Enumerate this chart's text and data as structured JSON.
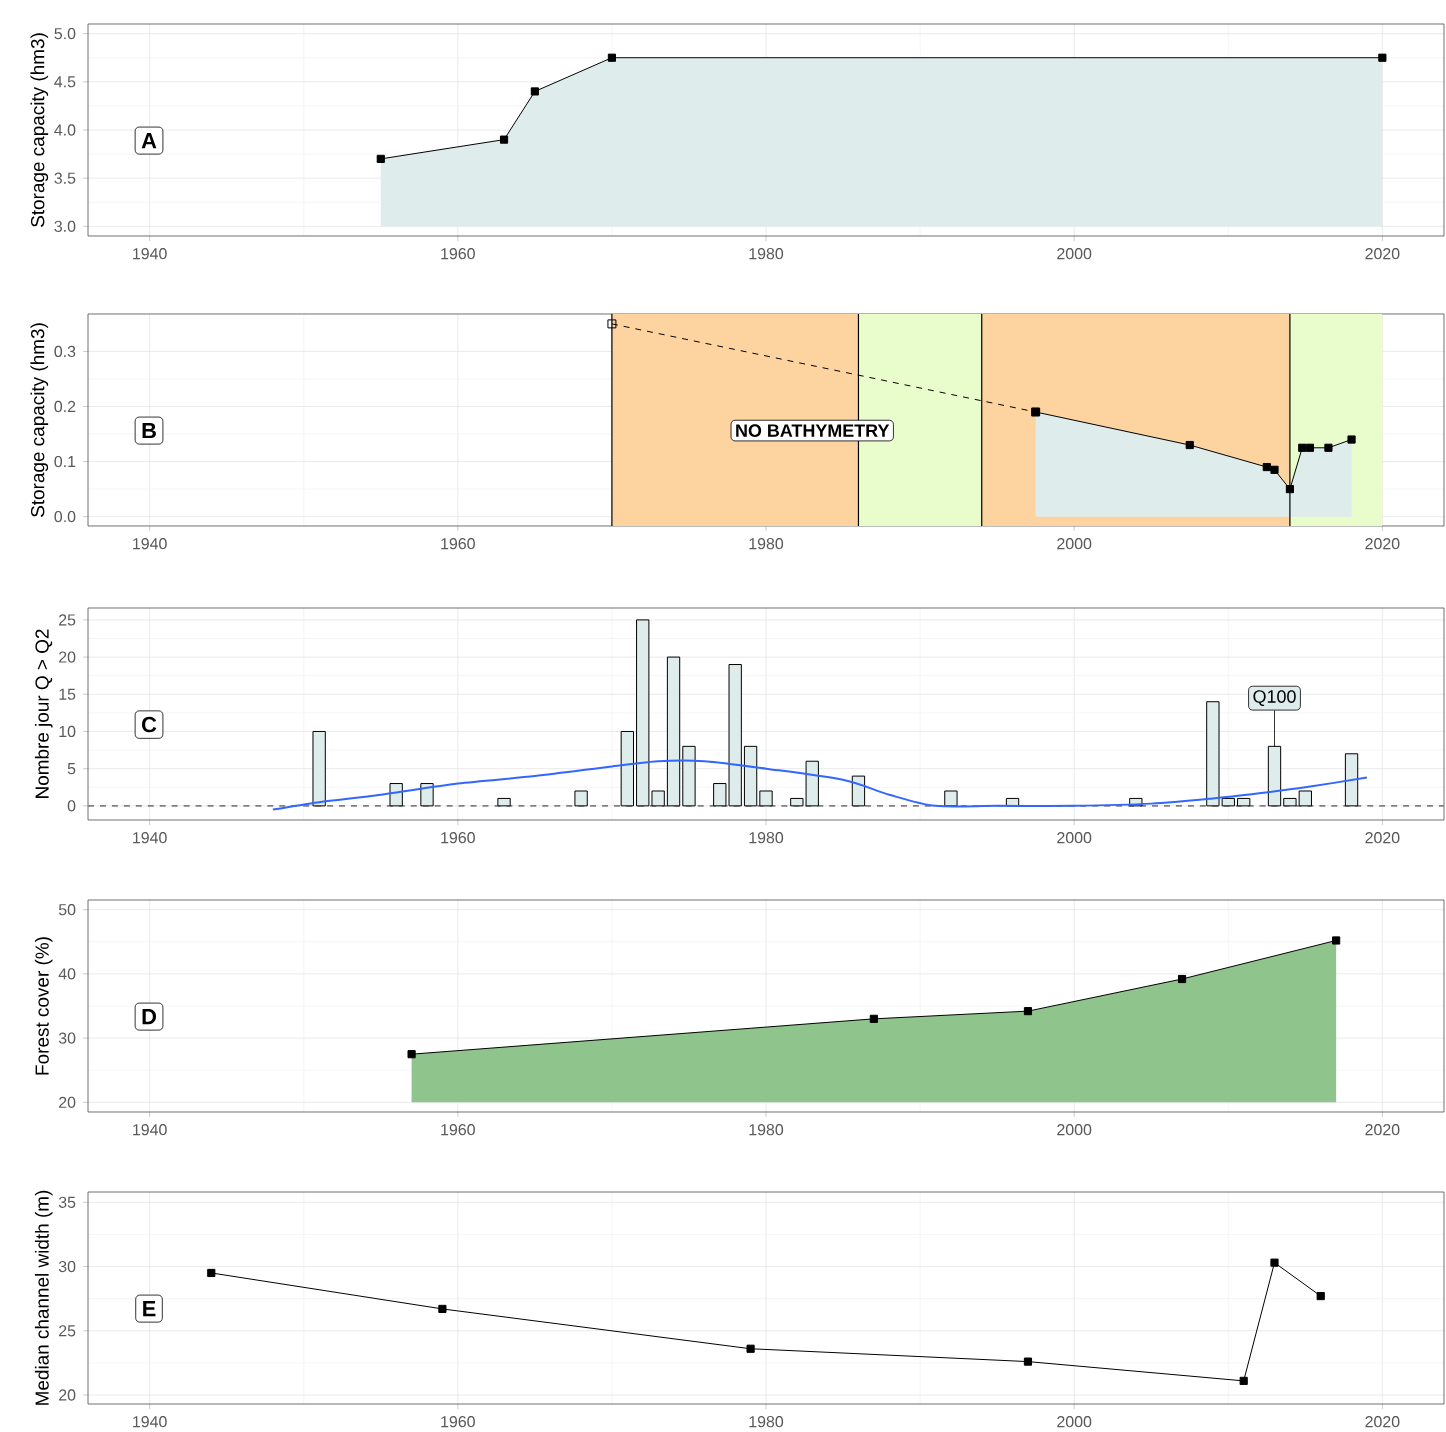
{
  "chart_data": [
    {
      "type": "area",
      "ylabel": "Storage capacity (hm3)",
      "annotations": [
        "A"
      ],
      "xlim": [
        1936,
        2024
      ],
      "xticks": [
        1940,
        1960,
        1980,
        2000,
        2020
      ],
      "ylim": [
        2.9,
        5.1
      ],
      "yticks": [
        {
          "value": 3,
          "label": "3.0"
        },
        {
          "value": 3.5,
          "label": "3.5"
        },
        {
          "value": 4,
          "label": "4.0"
        },
        {
          "value": 4.5,
          "label": "4.5"
        },
        {
          "value": 5,
          "label": "5.0"
        }
      ],
      "grid": true,
      "series": [
        {
          "color": "#dfecec",
          "marker": "square",
          "x": [
            1955,
            1963,
            1965,
            1970,
            2020
          ],
          "values": [
            3.7,
            3.9,
            4.4,
            4.75,
            4.75
          ]
        }
      ]
    },
    {
      "type": "area",
      "ylabel": "Storage capacity (hm3)",
      "annotations": [
        "B"
      ],
      "xlim": [
        1936,
        2024
      ],
      "xticks": [
        1940,
        1960,
        1980,
        2000,
        2020
      ],
      "ylim": [
        -0.017,
        0.368
      ],
      "yticks": [
        {
          "value": 0,
          "label": "0.0"
        },
        {
          "value": 0.1,
          "label": "0.1"
        },
        {
          "value": 0.2,
          "label": "0.2"
        },
        {
          "value": 0.3,
          "label": "0.3"
        }
      ],
      "grid": true,
      "bands": [
        {
          "axis": "x",
          "from": 1970,
          "to": 1986,
          "color": "#fdd3a0",
          "label": "NO BATHYMETRY"
        },
        {
          "axis": "x",
          "from": 1986,
          "to": 1994,
          "color": "#e8fccc"
        },
        {
          "axis": "x",
          "from": 1994,
          "to": 2014,
          "color": "#fdd3a0"
        },
        {
          "axis": "x",
          "from": 2014,
          "to": 2020,
          "color": "#e8fccc"
        }
      ],
      "ref_lines": [
        {
          "axis": "x",
          "value": 1970,
          "color": "#000000"
        },
        {
          "axis": "x",
          "value": 1986,
          "color": "#000000"
        },
        {
          "axis": "x",
          "value": 1994,
          "color": "#000000"
        },
        {
          "axis": "x",
          "value": 2014,
          "color": "#000000"
        }
      ],
      "series": [
        {
          "color": "#dfecec",
          "marker": "square",
          "x": [
            1997.5,
            2007.5,
            2012.5,
            2013,
            2014,
            2014.8,
            2015.3,
            2016.5,
            2018
          ],
          "values": [
            0.19,
            0.13,
            0.09,
            0.085,
            0.05,
            0.125,
            0.125,
            0.125,
            0.14
          ]
        },
        {
          "type": "line",
          "color": "#000000",
          "marker": "square",
          "line_style": "dashed",
          "x": [
            1970,
            1997.5
          ],
          "values": [
            0.35,
            0.19
          ]
        }
      ]
    },
    {
      "type": "bar",
      "ylabel": "Nombre jour Q > Q2",
      "annotations": [
        "C",
        {
          "text": "Q100",
          "x": 2013,
          "y": 8
        }
      ],
      "xlim": [
        1936,
        2024
      ],
      "xticks": [
        1940,
        1960,
        1980,
        2000,
        2020
      ],
      "ylim": [
        -1.9,
        26.6
      ],
      "yticks": [
        0,
        5,
        10,
        15,
        20,
        25
      ],
      "grid": true,
      "ref_lines": [
        {
          "axis": "y",
          "value": 0,
          "color": "#808080",
          "line_style": "dashed"
        }
      ],
      "series": [
        {
          "color": "#dfecec",
          "x": [
            1951,
            1956,
            1958,
            1963,
            1968,
            1971,
            1972,
            1973,
            1974,
            1975,
            1977,
            1978,
            1979,
            1980,
            1982,
            1983,
            1986,
            1992,
            1996,
            2004,
            2009,
            2010,
            2011,
            2013,
            2014,
            2015,
            2018
          ],
          "values": [
            10,
            3,
            3,
            1,
            2,
            10,
            25,
            2,
            20,
            8,
            3,
            19,
            8,
            2,
            1,
            6,
            4,
            2,
            1,
            1,
            14,
            1,
            1,
            8,
            1,
            2,
            7
          ]
        },
        {
          "type": "line",
          "color": "#3366ff",
          "x": [
            1948,
            1951,
            1955,
            1960,
            1965,
            1970,
            1973,
            1976,
            1980,
            1985,
            1988,
            1991,
            1995,
            2000,
            2005,
            2009,
            2012,
            2015,
            2019
          ],
          "values": [
            -0.5,
            0.5,
            1.5,
            3,
            4,
            5.3,
            6,
            6,
            5,
            3.5,
            1.5,
            0,
            0,
            0,
            0.3,
            1,
            1.7,
            2.5,
            3.8
          ]
        }
      ]
    },
    {
      "type": "area",
      "ylabel": "Forest cover (%)",
      "annotations": [
        "D"
      ],
      "xlim": [
        1936,
        2024
      ],
      "xticks": [
        1940,
        1960,
        1980,
        2000,
        2020
      ],
      "ylim": [
        18.5,
        51.5
      ],
      "yticks": [
        20,
        30,
        40,
        50
      ],
      "grid": true,
      "series": [
        {
          "color": "#8fc48c",
          "marker": "square",
          "x": [
            1957,
            1987,
            1997,
            2007,
            2017
          ],
          "values": [
            27.5,
            33,
            34.2,
            39.2,
            45.2
          ]
        }
      ]
    },
    {
      "type": "line",
      "ylabel": "Median channel width (m)",
      "annotations": [
        "E"
      ],
      "xlim": [
        1936,
        2024
      ],
      "xticks": [
        1940,
        1960,
        1980,
        2000,
        2020
      ],
      "ylim": [
        19.3,
        35.8
      ],
      "yticks": [
        20,
        25,
        30,
        35
      ],
      "grid": true,
      "series": [
        {
          "color": "#000000",
          "marker": "square",
          "x": [
            1944,
            1959,
            1979,
            1997,
            2011,
            2013,
            2016
          ],
          "values": [
            29.5,
            26.7,
            23.6,
            22.6,
            21.1,
            30.3,
            27.7
          ]
        }
      ]
    }
  ]
}
